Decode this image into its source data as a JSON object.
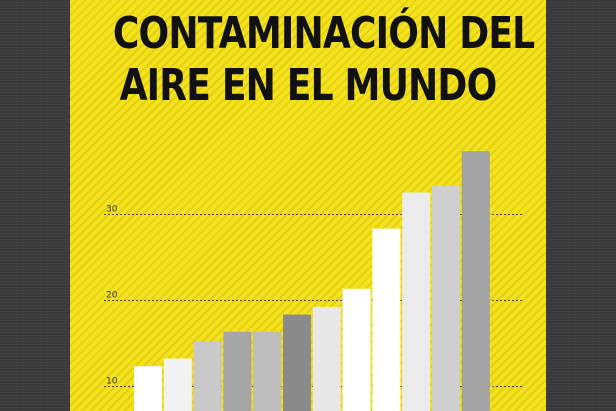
{
  "title_lines": [
    "CONTAMINACIÓN DEL",
    "AIRE EN EL MUNDO"
  ],
  "colors": {
    "background": "#3b3b3b",
    "poster": "#f4e21c",
    "title": "#111111",
    "gridline": "#444444",
    "tick_label": "#333333"
  },
  "chart_data": {
    "type": "bar",
    "title": "CONTAMINACIÓN DEL AIRE EN EL MUNDO",
    "xlabel": "",
    "ylabel": "",
    "ylim": [
      7,
      38
    ],
    "yticks": [
      10,
      20,
      30
    ],
    "grid": true,
    "values": [
      12.3,
      13.2,
      15.2,
      16.3,
      16.3,
      18.3,
      19.2,
      21.3,
      28.3,
      32.5,
      33.3,
      37.3
    ],
    "bar_colors": [
      "#ffffff",
      "#f2f2f2",
      "#c9c9c9",
      "#a6a6a6",
      "#bdbdbd",
      "#8a8a8a",
      "#e8e8e8",
      "#ffffff",
      "#ffffff",
      "#ebebeb",
      "#cfcfcf",
      "#a3a3a3"
    ]
  }
}
